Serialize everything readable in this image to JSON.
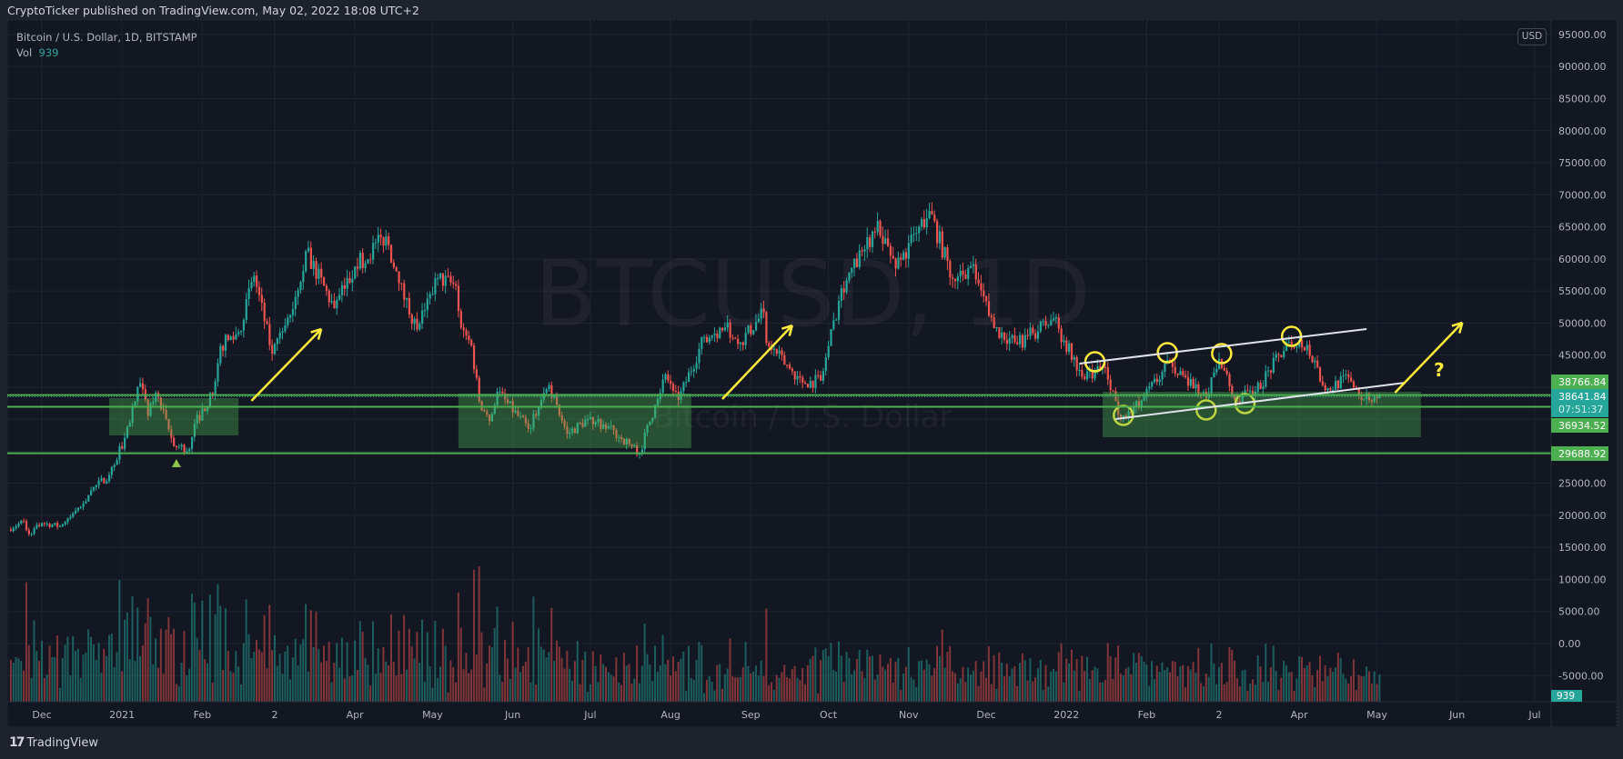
{
  "header": {
    "published": "CryptoTicker published on TradingView.com, May 02, 2022 18:08 UTC+2"
  },
  "legend": {
    "symbol": "Bitcoin / U.S. Dollar, 1D, BITSTAMP",
    "vol_label": "Vol",
    "vol_value": "939"
  },
  "currency_button": "USD",
  "footer": {
    "logo_mark": "17",
    "brand": "TradingView"
  },
  "colors": {
    "background": "#131722",
    "up": "#26a69a",
    "down": "#ef5350",
    "level": "#4caf50",
    "zone": "#4caf50",
    "annotation": "#ffeb3b",
    "trendline": "#e0e3eb"
  },
  "chart_data": {
    "type": "candlestick",
    "title": "Bitcoin / U.S. Dollar, 1D, BITSTAMP",
    "watermark": "BTCUSD, 1D",
    "watermark_sub": "Bitcoin / U.S. Dollar",
    "ylim": [
      -10000,
      97000
    ],
    "grid": true,
    "yticks": [
      "95000.00",
      "90000.00",
      "85000.00",
      "80000.00",
      "75000.00",
      "70000.00",
      "65000.00",
      "60000.00",
      "55000.00",
      "50000.00",
      "45000.00",
      "25000.00",
      "20000.00",
      "15000.00",
      "10000.00",
      "5000.00",
      "0.00",
      "-5000.00"
    ],
    "xticks": [
      {
        "label": "Dec",
        "date": "2020-12-01"
      },
      {
        "label": "2021",
        "date": "2021-01-01"
      },
      {
        "label": "Feb",
        "date": "2021-02-01"
      },
      {
        "label": "2",
        "date": "2021-03-01"
      },
      {
        "label": "Apr",
        "date": "2021-04-01"
      },
      {
        "label": "May",
        "date": "2021-05-01"
      },
      {
        "label": "Jun",
        "date": "2021-06-01"
      },
      {
        "label": "Jul",
        "date": "2021-07-01"
      },
      {
        "label": "Aug",
        "date": "2021-08-01"
      },
      {
        "label": "Sep",
        "date": "2021-09-01"
      },
      {
        "label": "Oct",
        "date": "2021-10-01"
      },
      {
        "label": "Nov",
        "date": "2021-11-01"
      },
      {
        "label": "Dec",
        "date": "2021-12-01"
      },
      {
        "label": "2022",
        "date": "2022-01-01"
      },
      {
        "label": "Feb",
        "date": "2022-02-01"
      },
      {
        "label": "2",
        "date": "2022-03-01"
      },
      {
        "label": "Apr",
        "date": "2022-04-01"
      },
      {
        "label": "May",
        "date": "2022-05-01"
      },
      {
        "label": "Jun",
        "date": "2022-06-01"
      },
      {
        "label": "Jul",
        "date": "2022-07-01"
      }
    ],
    "closes": [
      [
        "2020-11-18",
        17800
      ],
      [
        "2020-11-24",
        19100
      ],
      [
        "2020-11-26",
        17100
      ],
      [
        "2020-12-01",
        18800
      ],
      [
        "2020-12-08",
        18300
      ],
      [
        "2020-12-16",
        21300
      ],
      [
        "2020-12-20",
        23900
      ],
      [
        "2020-12-27",
        26300
      ],
      [
        "2021-01-02",
        32100
      ],
      [
        "2021-01-08",
        40600
      ],
      [
        "2021-01-11",
        35500
      ],
      [
        "2021-01-14",
        39100
      ],
      [
        "2021-01-21",
        30800
      ],
      [
        "2021-01-27",
        30400
      ],
      [
        "2021-01-29",
        34300
      ],
      [
        "2021-02-05",
        38900
      ],
      [
        "2021-02-08",
        46400
      ],
      [
        "2021-02-15",
        48600
      ],
      [
        "2021-02-21",
        57400
      ],
      [
        "2021-02-28",
        45200
      ],
      [
        "2021-03-07",
        51200
      ],
      [
        "2021-03-13",
        61200
      ],
      [
        "2021-03-24",
        52300
      ],
      [
        "2021-04-01",
        58800
      ],
      [
        "2021-04-13",
        63500
      ],
      [
        "2021-04-18",
        56200
      ],
      [
        "2021-04-25",
        49000
      ],
      [
        "2021-05-03",
        57000
      ],
      [
        "2021-05-10",
        55800
      ],
      [
        "2021-05-12",
        49300
      ],
      [
        "2021-05-16",
        46500
      ],
      [
        "2021-05-19",
        37800
      ],
      [
        "2021-05-23",
        34700
      ],
      [
        "2021-05-26",
        39300
      ],
      [
        "2021-06-07",
        33500
      ],
      [
        "2021-06-15",
        40300
      ],
      [
        "2021-06-22",
        32700
      ],
      [
        "2021-06-30",
        35000
      ],
      [
        "2021-07-06",
        34200
      ],
      [
        "2021-07-20",
        29800
      ],
      [
        "2021-07-26",
        37200
      ],
      [
        "2021-07-30",
        42000
      ],
      [
        "2021-08-04",
        38000
      ],
      [
        "2021-08-14",
        47800
      ],
      [
        "2021-08-22",
        49300
      ],
      [
        "2021-08-28",
        47000
      ],
      [
        "2021-09-06",
        51700
      ],
      [
        "2021-09-07",
        46900
      ],
      [
        "2021-09-21",
        40700
      ],
      [
        "2021-09-28",
        41000
      ],
      [
        "2021-10-06",
        55400
      ],
      [
        "2021-10-15",
        61500
      ],
      [
        "2021-10-20",
        65900
      ],
      [
        "2021-10-27",
        58500
      ],
      [
        "2021-11-09",
        67500
      ],
      [
        "2021-11-18",
        56900
      ],
      [
        "2021-11-25",
        58900
      ],
      [
        "2021-12-04",
        49200
      ],
      [
        "2021-12-13",
        46700
      ],
      [
        "2021-12-27",
        50700
      ],
      [
        "2022-01-07",
        41600
      ],
      [
        "2022-01-16",
        43100
      ],
      [
        "2022-01-22",
        35000
      ],
      [
        "2022-01-30",
        37900
      ],
      [
        "2022-02-10",
        43800
      ],
      [
        "2022-02-14",
        42500
      ],
      [
        "2022-02-24",
        38300
      ],
      [
        "2022-03-01",
        44400
      ],
      [
        "2022-03-07",
        38100
      ],
      [
        "2022-03-15",
        39300
      ],
      [
        "2022-03-28",
        47100
      ],
      [
        "2022-04-04",
        46600
      ],
      [
        "2022-04-11",
        39500
      ],
      [
        "2022-04-20",
        41500
      ],
      [
        "2022-04-26",
        38100
      ],
      [
        "2022-05-02",
        38641.84
      ]
    ],
    "last_price": "38641.84",
    "countdown": "07:51:37",
    "volume_last": "939",
    "levels": [
      {
        "price": 38766.84,
        "label": "38766.84"
      },
      {
        "price": 36934.52,
        "label": "36934.52"
      },
      {
        "price": 29688.92,
        "label": "29688.92"
      }
    ],
    "zones": [
      {
        "from": "2020-12-27",
        "to": "2021-02-15",
        "low": 32470,
        "high": 38280
      },
      {
        "from": "2021-05-11",
        "to": "2021-08-09",
        "low": 30480,
        "high": 39000
      },
      {
        "from": "2022-01-15",
        "to": "2022-05-18",
        "low": 32185,
        "high": 39270
      }
    ],
    "trendlines": [
      {
        "from": [
          "2022-01-06",
          43670
        ],
        "to": [
          "2022-04-27",
          49060
        ]
      },
      {
        "from": [
          "2022-01-20",
          35020
        ],
        "to": [
          "2022-05-12",
          40690
        ]
      }
    ],
    "arrows": [
      {
        "from": [
          "2021-02-20",
          37860
        ],
        "to": [
          "2021-03-19",
          49060
        ]
      },
      {
        "from": [
          "2021-08-21",
          38140
        ],
        "to": [
          "2021-09-17",
          49620
        ]
      },
      {
        "from": [
          "2022-05-08",
          39130
        ],
        "to": [
          "2022-06-03",
          50050
        ]
      }
    ],
    "question_mark": {
      "text": "?",
      "at": [
        "2022-05-23",
        41690
      ]
    },
    "circles": [
      [
        "2022-01-12",
        43950
      ],
      [
        "2022-02-09",
        45370
      ],
      [
        "2022-03-02",
        45230
      ],
      [
        "2022-03-29",
        47920
      ],
      [
        "2022-01-23",
        35590
      ],
      [
        "2022-02-24",
        36440
      ],
      [
        "2022-03-11",
        37430
      ]
    ],
    "marker": {
      "shape": "triangle-up",
      "at": [
        "2021-01-22",
        28070
      ]
    }
  }
}
